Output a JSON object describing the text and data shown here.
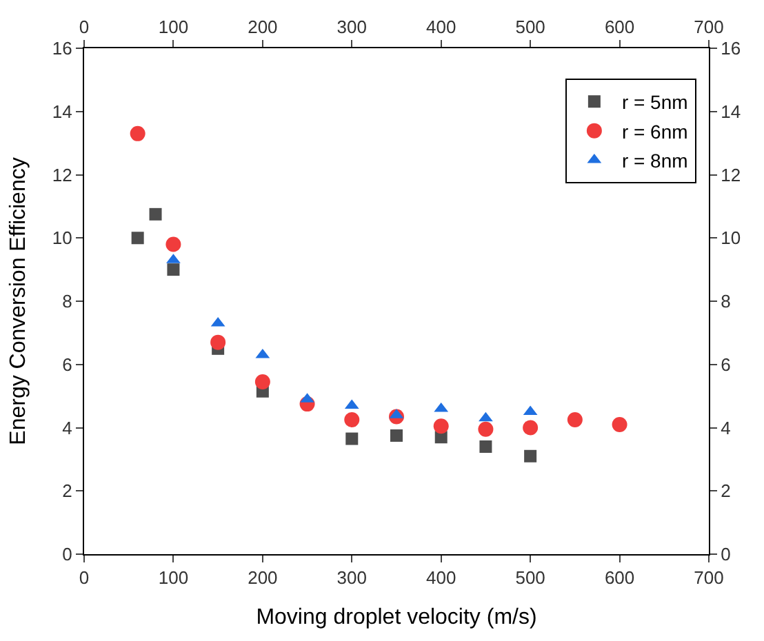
{
  "chart_data": {
    "type": "scatter",
    "xlabel": "Moving droplet velocity (m/s)",
    "ylabel": "Energy Conversion Efficiency",
    "xlim": [
      0,
      700
    ],
    "xticks": [
      0,
      100,
      200,
      300,
      400,
      500,
      600,
      700
    ],
    "x2lim": [
      0,
      700
    ],
    "x2ticks": [
      0,
      100,
      200,
      300,
      400,
      500,
      600,
      700
    ],
    "ylim": [
      0,
      16
    ],
    "yticks": [
      0,
      2,
      4,
      6,
      8,
      10,
      12,
      14,
      16
    ],
    "y2lim": [
      0,
      16
    ],
    "y2ticks": [
      0,
      2,
      4,
      6,
      8,
      10,
      12,
      14,
      16
    ],
    "legend": "top right",
    "series": [
      {
        "name": "r = 5nm",
        "color": "#4d4d4d",
        "marker": "square",
        "x": [
          60,
          80,
          100,
          150,
          200,
          300,
          350,
          400,
          450,
          500
        ],
        "values": [
          10.0,
          10.75,
          9.0,
          6.5,
          5.15,
          3.65,
          3.75,
          3.7,
          3.4,
          3.1
        ]
      },
      {
        "name": "r = 6nm",
        "color": "#f03c3c",
        "marker": "circle",
        "x": [
          60,
          100,
          150,
          200,
          250,
          300,
          350,
          400,
          450,
          500,
          550,
          600
        ],
        "values": [
          13.3,
          9.8,
          6.7,
          5.45,
          4.75,
          4.25,
          4.35,
          4.05,
          3.95,
          4.0,
          4.25,
          4.1
        ]
      },
      {
        "name": "r = 8nm",
        "color": "#1f6fe0",
        "marker": "triangle",
        "x": [
          100,
          150,
          200,
          250,
          300,
          350,
          400,
          450,
          500
        ],
        "values": [
          9.3,
          7.3,
          6.3,
          4.9,
          4.7,
          4.4,
          4.6,
          4.3,
          4.5
        ]
      }
    ]
  }
}
